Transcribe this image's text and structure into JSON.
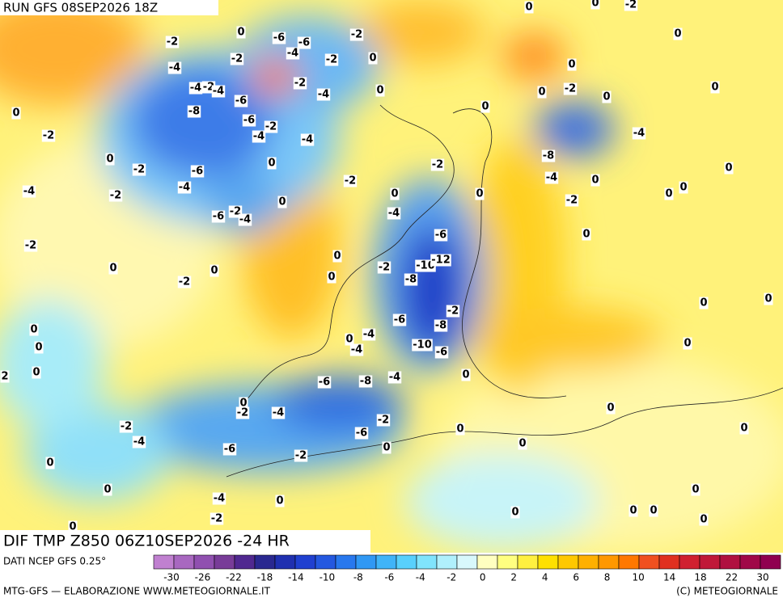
{
  "header": {
    "run": "RUN GFS 08SEP2026 18Z",
    "field": "DIF TMP Z850 06Z10SEP2026 -24 HR"
  },
  "contour_labels": [
    0,
    -2,
    0,
    -2,
    -4,
    -2,
    -2,
    0,
    -2,
    0,
    0,
    0,
    0,
    2,
    -2,
    -4,
    0,
    -2,
    -4,
    0,
    -6,
    -6,
    -4,
    -2,
    -2,
    -2,
    -4,
    -4,
    -2,
    -4,
    -6,
    -8,
    -6,
    -2,
    -4,
    -4,
    0,
    -6,
    -4,
    -6,
    -2,
    -4,
    0,
    -2,
    -2,
    0,
    0,
    0,
    0,
    0,
    -2,
    0,
    0,
    0,
    -2,
    0,
    0,
    -4,
    -8,
    -4,
    0,
    -2,
    0,
    0,
    0,
    0,
    -2,
    0,
    0,
    -4,
    -6,
    -2,
    -10,
    -12,
    -8,
    0,
    0,
    -2,
    -6,
    -8,
    -4,
    0,
    -4,
    -10,
    -6,
    0,
    -4,
    -6,
    -8,
    0,
    -2,
    -4,
    -2,
    -6,
    0,
    -6,
    -2,
    0,
    0,
    0,
    0,
    0,
    0,
    0,
    0,
    0,
    0,
    0,
    0,
    0,
    -4,
    -2,
    0,
    0
  ],
  "colorbar": {
    "source": "DATI NCEP GFS 0.25°",
    "colors": [
      "#c080d0",
      "#a868c0",
      "#9050b0",
      "#783c98",
      "#502890",
      "#2a2890",
      "#2030b0",
      "#2040d0",
      "#2458e0",
      "#2878ee",
      "#3098f4",
      "#40b4f8",
      "#58d0fc",
      "#80e4fc",
      "#b0f0fc",
      "#d8f8fc",
      "#ffffc0",
      "#ffff80",
      "#fff040",
      "#ffe000",
      "#ffc800",
      "#ffb000",
      "#ff9800",
      "#ff7800",
      "#f05020",
      "#e03020",
      "#d02030",
      "#c01838",
      "#b01040",
      "#a00848",
      "#900050"
    ],
    "ticks": [
      -30,
      -26,
      -22,
      -18,
      -14,
      -10,
      -8,
      -6,
      -4,
      -2,
      0,
      2,
      4,
      6,
      8,
      10,
      14,
      18,
      22,
      30
    ]
  },
  "footer": {
    "left": "MTG-GFS — ELABORAZIONE WWW.METEOGIORNALE.IT",
    "right": "(C) METEOGIORNALE"
  }
}
